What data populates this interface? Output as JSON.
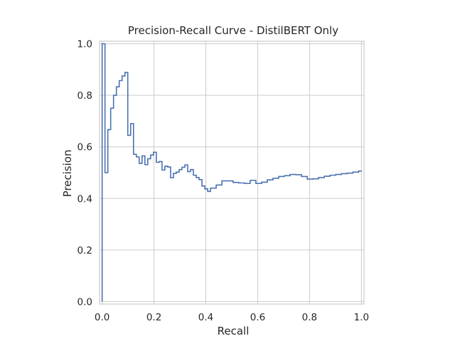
{
  "chart_data": {
    "type": "line",
    "step": true,
    "title": "Precision-Recall Curve - DistilBERT Only",
    "xlabel": "Recall",
    "ylabel": "Precision",
    "xlim": [
      -0.01,
      1.01
    ],
    "ylim": [
      -0.01,
      1.01
    ],
    "xticks": [
      0.0,
      0.2,
      0.4,
      0.6,
      0.8,
      1.0
    ],
    "yticks": [
      0.0,
      0.2,
      0.4,
      0.6,
      0.8,
      1.0
    ],
    "xtick_labels": [
      "0.0",
      "0.2",
      "0.4",
      "0.6",
      "0.8",
      "1.0"
    ],
    "ytick_labels": [
      "0.0",
      "0.2",
      "0.4",
      "0.6",
      "0.8",
      "1.0"
    ],
    "grid": true,
    "color": "#4c72b0",
    "series": [
      {
        "recall": [
          0.0,
          0.0,
          0.011,
          0.022,
          0.033,
          0.044,
          0.055,
          0.066,
          0.077,
          0.088,
          0.088,
          0.099,
          0.099,
          0.11,
          0.121,
          0.132,
          0.143,
          0.154,
          0.165,
          0.176,
          0.187,
          0.198,
          0.209,
          0.22,
          0.231,
          0.242,
          0.253,
          0.264,
          0.275,
          0.286,
          0.297,
          0.308,
          0.319,
          0.33,
          0.341,
          0.352,
          0.363,
          0.374,
          0.385,
          0.396,
          0.407,
          0.418,
          0.44,
          0.462,
          0.484,
          0.505,
          0.527,
          0.549,
          0.571,
          0.593,
          0.615,
          0.637,
          0.659,
          0.681,
          0.703,
          0.725,
          0.747,
          0.769,
          0.791,
          0.813,
          0.835,
          0.857,
          0.879,
          0.901,
          0.923,
          0.945,
          0.967,
          0.989,
          1.0
        ],
        "precision": [
          0.0,
          1.0,
          0.5,
          0.667,
          0.75,
          0.8,
          0.833,
          0.857,
          0.875,
          0.889,
          0.889,
          0.69,
          0.645,
          0.69,
          0.571,
          0.561,
          0.536,
          0.565,
          0.531,
          0.554,
          0.568,
          0.579,
          0.54,
          0.543,
          0.51,
          0.525,
          0.522,
          0.48,
          0.497,
          0.502,
          0.512,
          0.521,
          0.53,
          0.504,
          0.512,
          0.49,
          0.481,
          0.473,
          0.448,
          0.437,
          0.427,
          0.44,
          0.452,
          0.468,
          0.468,
          0.462,
          0.46,
          0.458,
          0.47,
          0.458,
          0.463,
          0.472,
          0.478,
          0.485,
          0.488,
          0.493,
          0.492,
          0.485,
          0.475,
          0.476,
          0.481,
          0.486,
          0.49,
          0.493,
          0.496,
          0.498,
          0.502,
          0.506,
          0.505
        ]
      }
    ]
  }
}
